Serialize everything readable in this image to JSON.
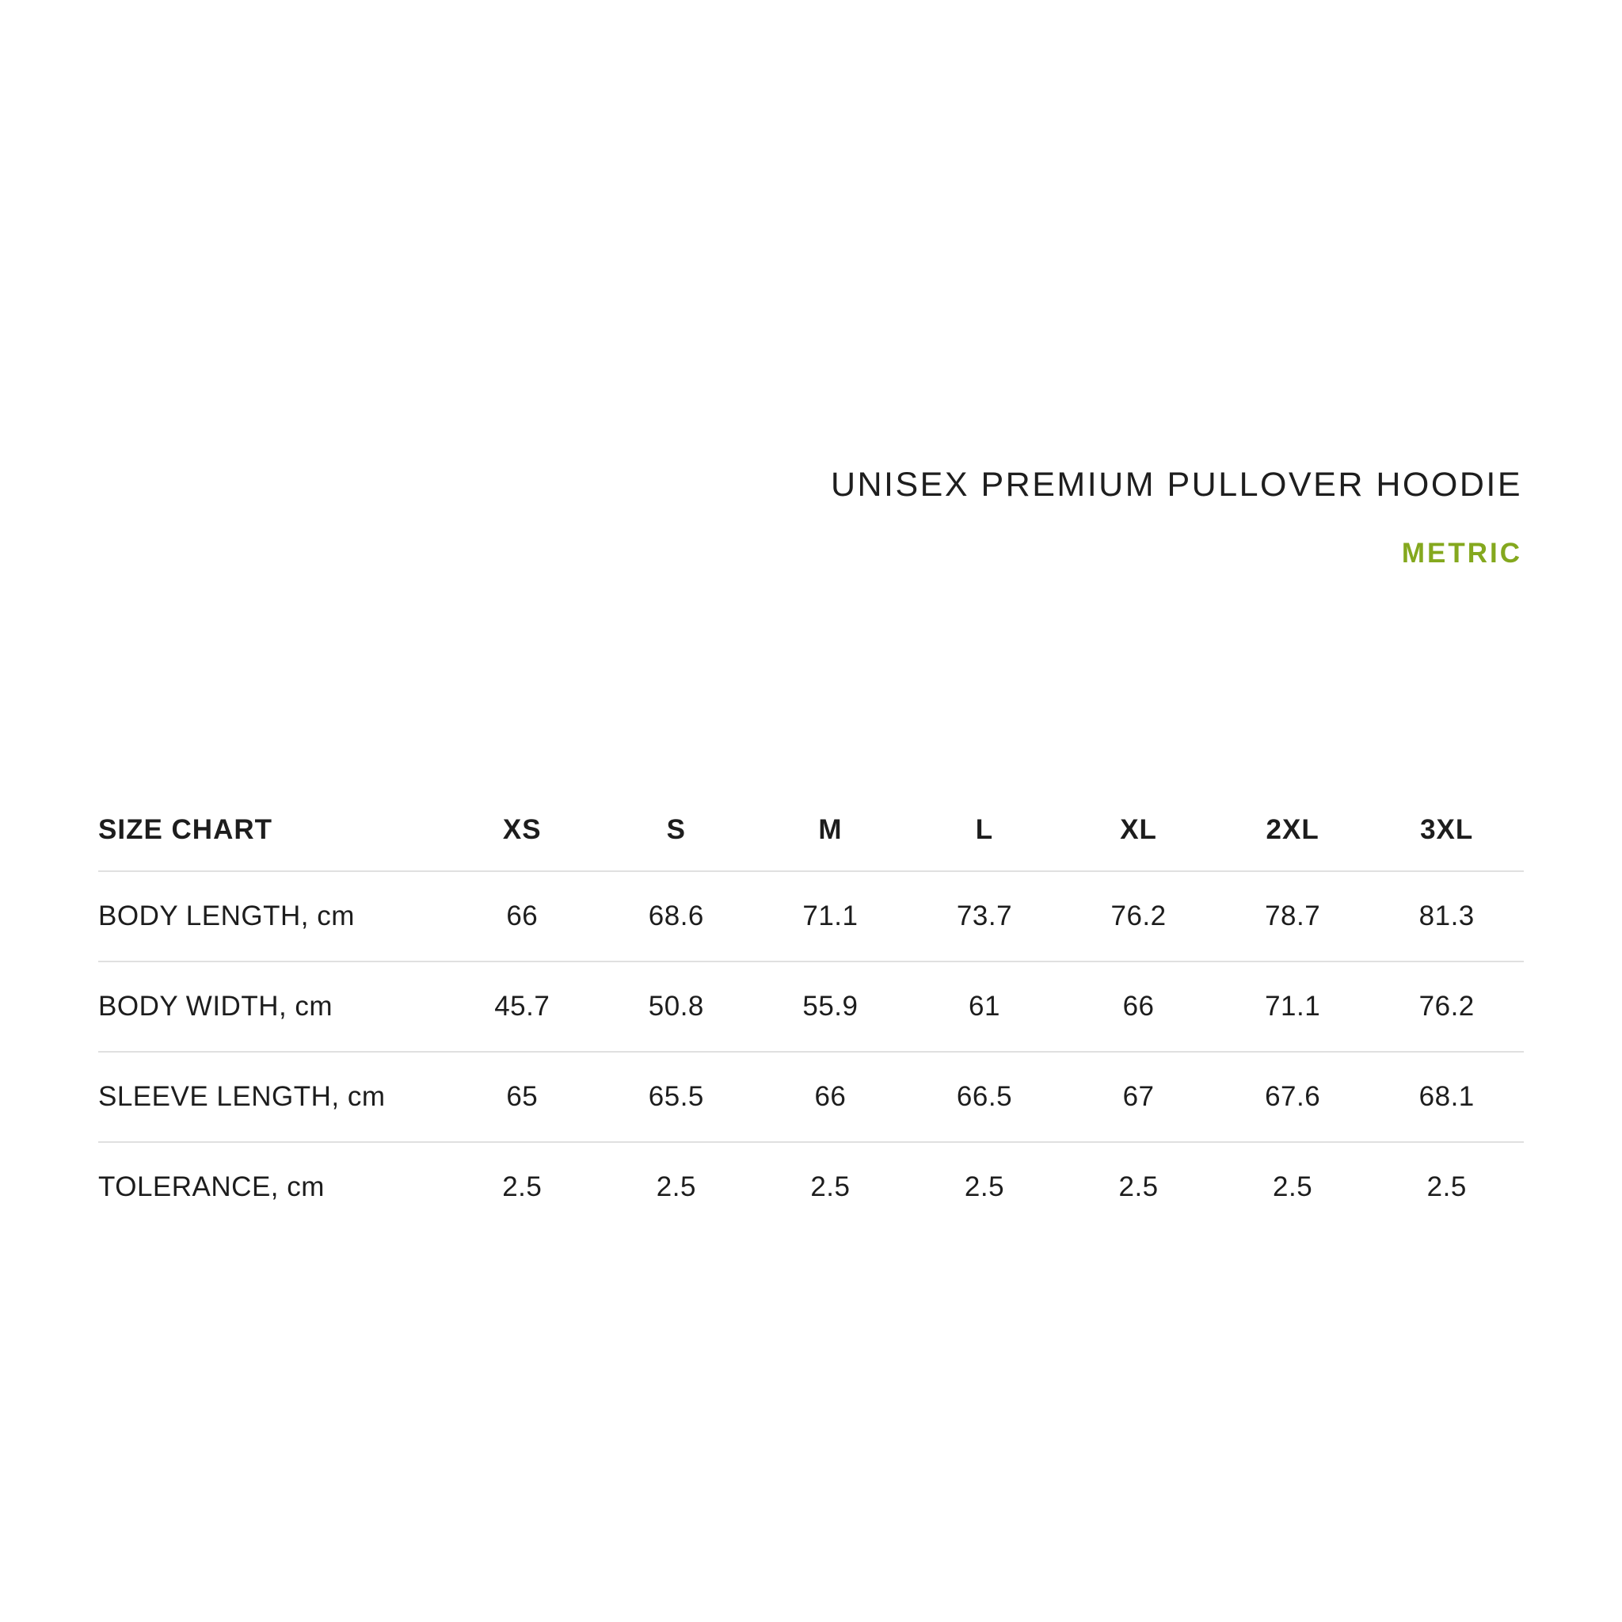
{
  "header": {
    "title": "UNISEX PREMIUM PULLOVER HOODIE",
    "unit_label": "METRIC",
    "accent_color": "#84a81e",
    "title_color": "#1e1e1e"
  },
  "table": {
    "label_header": "SIZE CHART",
    "divider_color": "#e0e0e0",
    "columns": [
      "XS",
      "S",
      "M",
      "L",
      "XL",
      "2XL",
      "3XL"
    ],
    "rows": [
      {
        "label": "BODY LENGTH, cm",
        "values": [
          "66",
          "68.6",
          "71.1",
          "73.7",
          "76.2",
          "78.7",
          "81.3"
        ]
      },
      {
        "label": "BODY WIDTH, cm",
        "values": [
          "45.7",
          "50.8",
          "55.9",
          "61",
          "66",
          "71.1",
          "76.2"
        ]
      },
      {
        "label": "SLEEVE LENGTH, cm",
        "values": [
          "65",
          "65.5",
          "66",
          "66.5",
          "67",
          "67.6",
          "68.1"
        ]
      },
      {
        "label": "TOLERANCE, cm",
        "values": [
          "2.5",
          "2.5",
          "2.5",
          "2.5",
          "2.5",
          "2.5",
          "2.5"
        ]
      }
    ]
  }
}
